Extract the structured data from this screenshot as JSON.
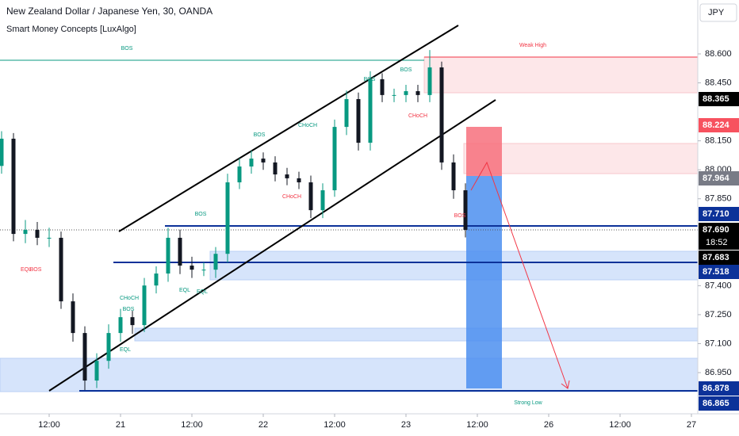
{
  "chart_data": {
    "type": "candlestick",
    "title": "New Zealand Dollar / Japanese Yen, 30, OANDA",
    "subtitle": "Smart Money Concepts [LuxAlgo]",
    "currency": "JPY",
    "countdown": "18:52",
    "up_color": "#089981",
    "down_color": "#131722",
    "x": [
      0,
      2,
      4,
      6,
      8,
      10,
      12,
      14,
      16,
      18,
      20,
      22,
      24,
      26,
      28,
      30,
      32,
      34,
      36,
      38,
      40,
      42,
      44,
      46,
      48,
      50,
      52,
      54,
      56,
      58,
      60,
      62,
      64,
      66,
      68,
      70,
      72,
      74,
      76,
      78
    ],
    "open": [
      88.02,
      88.161,
      87.668,
      87.689,
      87.648,
      87.648,
      87.319,
      87.155,
      86.909,
      87.011,
      87.155,
      87.237,
      87.196,
      87.401,
      87.463,
      87.648,
      87.504,
      87.483,
      87.483,
      87.565,
      87.935,
      88.017,
      88.058,
      88.038,
      87.976,
      87.956,
      87.935,
      87.791,
      87.894,
      88.222,
      88.366,
      88.14,
      88.469,
      88.387,
      88.387,
      88.407,
      88.387,
      88.53,
      88.038,
      87.894
    ],
    "high": [
      88.2,
      88.19,
      87.74,
      87.73,
      87.7,
      87.68,
      87.36,
      87.19,
      87.05,
      87.2,
      87.28,
      87.27,
      87.44,
      87.5,
      87.7,
      87.69,
      87.55,
      87.52,
      87.6,
      87.98,
      88.06,
      88.1,
      88.09,
      88.07,
      88.01,
      87.99,
      87.97,
      87.93,
      88.26,
      88.41,
      88.4,
      88.51,
      88.5,
      88.42,
      88.44,
      88.44,
      88.62,
      88.56,
      88.08,
      87.93
    ],
    "low": [
      87.98,
      87.63,
      87.62,
      87.61,
      87.6,
      87.28,
      87.11,
      86.86,
      86.87,
      86.97,
      87.11,
      87.15,
      87.16,
      87.36,
      87.42,
      87.46,
      87.44,
      87.45,
      87.44,
      87.52,
      87.9,
      87.98,
      88.0,
      87.94,
      87.92,
      87.9,
      87.75,
      87.75,
      87.86,
      88.18,
      88.1,
      88.1,
      88.35,
      88.35,
      88.35,
      88.35,
      88.35,
      88.0,
      87.85,
      87.65
    ],
    "close": [
      88.161,
      87.668,
      87.689,
      87.648,
      87.648,
      87.319,
      87.155,
      86.909,
      87.011,
      87.155,
      87.237,
      87.196,
      87.401,
      87.463,
      87.648,
      87.504,
      87.483,
      87.483,
      87.565,
      87.935,
      88.017,
      88.058,
      88.038,
      87.976,
      87.956,
      87.935,
      87.791,
      87.894,
      88.222,
      88.366,
      88.14,
      88.469,
      88.387,
      88.387,
      88.407,
      88.387,
      88.53,
      88.038,
      87.894,
      87.689
    ],
    "xlim": [
      0,
      117
    ],
    "xticks": [
      {
        "value": 8,
        "label": "12:00"
      },
      {
        "value": 20,
        "label": "21"
      },
      {
        "value": 32,
        "label": "12:00"
      },
      {
        "value": 44,
        "label": "22"
      },
      {
        "value": 56,
        "label": "12:00"
      },
      {
        "value": 68,
        "label": "23"
      },
      {
        "value": 80,
        "label": "12:00"
      },
      {
        "value": 92,
        "label": "26"
      },
      {
        "value": 104,
        "label": "12:00"
      },
      {
        "value": 116,
        "label": "27"
      }
    ],
    "ylim": [
      86.745,
      88.879
    ],
    "yticks": [
      {
        "value": 88.6,
        "label": "88.600"
      },
      {
        "value": 88.45,
        "label": "88.450"
      },
      {
        "value": 88.15,
        "label": "88.150"
      },
      {
        "value": 88.0,
        "label": "88.000"
      },
      {
        "value": 87.85,
        "label": "87.850"
      },
      {
        "value": 87.4,
        "label": "87.400"
      },
      {
        "value": 87.25,
        "label": "87.250"
      },
      {
        "value": 87.1,
        "label": "87.100"
      },
      {
        "value": 86.95,
        "label": "86.950"
      }
    ],
    "price_tags": [
      {
        "value": 88.365,
        "label": "88.365",
        "color": "#000000"
      },
      {
        "value": 88.224,
        "label": "88.224",
        "color": "#f7525f"
      },
      {
        "value": 87.964,
        "label": "87.964",
        "color": "#787b86"
      },
      {
        "value": 87.71,
        "label": "87.710",
        "color": "#0c3299"
      },
      {
        "value": 87.69,
        "label": "87.690",
        "color": "#000000"
      },
      {
        "value": 87.683,
        "label": "87.683",
        "color": "#000000"
      },
      {
        "value": 87.518,
        "label": "87.518",
        "color": "#0c3299"
      },
      {
        "value": 86.878,
        "label": "86.878",
        "color": "#0c3299"
      },
      {
        "value": 86.865,
        "label": "86.865",
        "color": "#0c3299"
      }
    ],
    "annotations": [
      {
        "text": "BOS",
        "color": "#089981"
      },
      {
        "text": "Weak High",
        "color": "#f23645"
      },
      {
        "text": "BOS",
        "color": "#089981"
      },
      {
        "text": "BOS",
        "color": "#089981"
      },
      {
        "text": "CHoCH",
        "color": "#f23645"
      },
      {
        "text": "CHoCH",
        "color": "#089981"
      },
      {
        "text": "BOS",
        "color": "#089981"
      },
      {
        "text": "CHoCH",
        "color": "#f23645"
      },
      {
        "text": "BOS",
        "color": "#089981"
      },
      {
        "text": "BOS",
        "color": "#f23645"
      },
      {
        "text": "EQL",
        "color": "#f23645"
      },
      {
        "text": "BOS",
        "color": "#f23645"
      },
      {
        "text": "EQL",
        "color": "#089981"
      },
      {
        "text": "EQL",
        "color": "#089981"
      },
      {
        "text": "CHoCH",
        "color": "#089981"
      },
      {
        "text": "BOS",
        "color": "#089981"
      },
      {
        "text": "EQL",
        "color": "#089981"
      },
      {
        "text": "Strong Low",
        "color": "#089981"
      }
    ]
  }
}
